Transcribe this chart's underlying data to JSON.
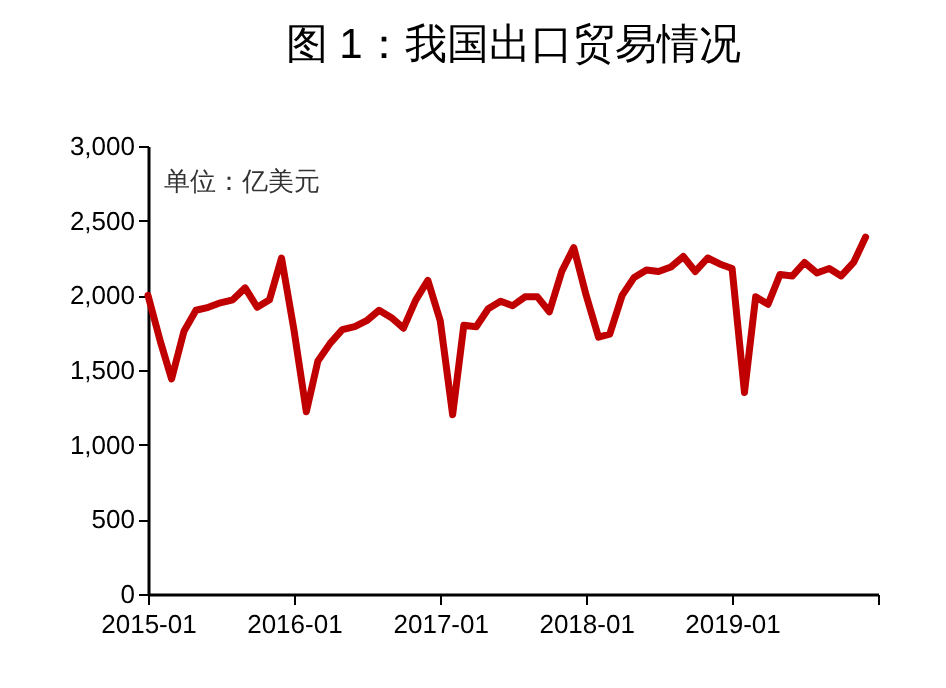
{
  "chart_data": {
    "type": "line",
    "title": "图 1：我国出口贸易情况",
    "annotations": [
      "单位：亿美元"
    ],
    "x": [
      "2015-01",
      "2015-02",
      "2015-03",
      "2015-04",
      "2015-05",
      "2015-06",
      "2015-07",
      "2015-08",
      "2015-09",
      "2015-10",
      "2015-11",
      "2015-12",
      "2016-01",
      "2016-02",
      "2016-03",
      "2016-04",
      "2016-05",
      "2016-06",
      "2016-07",
      "2016-08",
      "2016-09",
      "2016-10",
      "2016-11",
      "2016-12",
      "2017-01",
      "2017-02",
      "2017-03",
      "2017-04",
      "2017-05",
      "2017-06",
      "2017-07",
      "2017-08",
      "2017-09",
      "2017-10",
      "2017-11",
      "2017-12",
      "2018-01",
      "2018-02",
      "2018-03",
      "2018-04",
      "2018-05",
      "2018-06",
      "2018-07",
      "2018-08",
      "2018-09",
      "2018-10",
      "2018-11",
      "2018-12",
      "2019-01",
      "2019-02",
      "2019-03",
      "2019-04",
      "2019-05",
      "2019-06",
      "2019-07",
      "2019-08",
      "2019-09",
      "2019-10",
      "2019-11",
      "2019-12"
    ],
    "series": [
      {
        "color": "#c00000",
        "values": [
          2000,
          1690,
          1440,
          1760,
          1900,
          1920,
          1950,
          1970,
          2050,
          1920,
          1970,
          2250,
          1770,
          1220,
          1560,
          1680,
          1770,
          1790,
          1830,
          1900,
          1850,
          1780,
          1970,
          2100,
          1830,
          1200,
          1800,
          1790,
          1910,
          1960,
          1930,
          1990,
          1990,
          1890,
          2160,
          2320,
          2000,
          1720,
          1740,
          2000,
          2120,
          2170,
          2160,
          2190,
          2260,
          2160,
          2250,
          2210,
          2180,
          1350,
          1990,
          1940,
          2140,
          2130,
          2220,
          2150,
          2180,
          2130,
          2220,
          2390
        ]
      }
    ],
    "xlim": [
      "2015-01",
      "2020-01"
    ],
    "xticks": [
      {
        "value": "2015-01",
        "label": "2015-01"
      },
      {
        "value": "2016-01",
        "label": "2016-01"
      },
      {
        "value": "2017-01",
        "label": "2017-01"
      },
      {
        "value": "2018-01",
        "label": "2018-01"
      },
      {
        "value": "2019-01",
        "label": "2019-01"
      },
      {
        "value": "2020-01",
        "label": null
      }
    ],
    "ylim": [
      0,
      3000
    ],
    "yticks": [
      0,
      500,
      {
        "value": 1000,
        "label": "1,000"
      },
      {
        "value": 1500,
        "label": "1,500"
      },
      {
        "value": 2000,
        "label": "2,000"
      },
      {
        "value": 2500,
        "label": "2,500"
      },
      {
        "value": 3000,
        "label": "3,000"
      }
    ],
    "grid": false,
    "legend": false,
    "marker": "none",
    "line_style": "solid"
  }
}
